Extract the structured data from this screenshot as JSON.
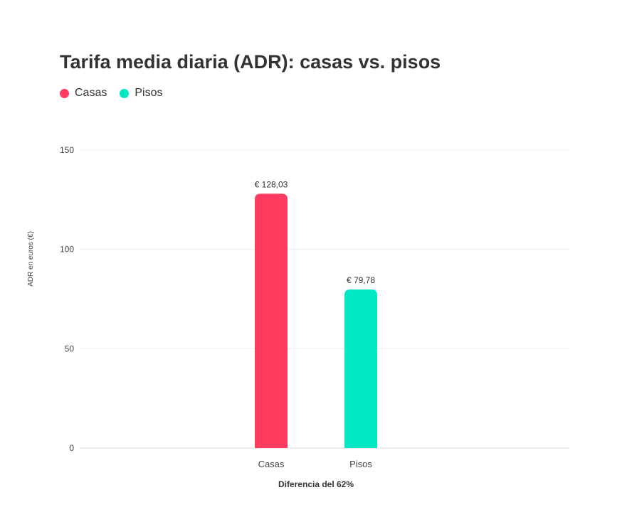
{
  "chart_data": {
    "type": "bar",
    "title": "Tarifa media diaria (ADR): casas vs. pisos",
    "xlabel": "Diferencia del 62%",
    "ylabel": "ADR en euros (€)",
    "categories": [
      "Casas",
      "Pisos"
    ],
    "values": [
      128.03,
      79.78
    ],
    "value_labels": [
      "€ 128,03",
      "€ 79,78"
    ],
    "colors": [
      "#ff3b5f",
      "#00e8c4"
    ],
    "ylim": [
      0,
      150
    ],
    "yticks": [
      0,
      50,
      100,
      150
    ],
    "grid": true,
    "legend_position": "top-left",
    "legend": [
      {
        "name": "Casas",
        "color": "#ff3b5f"
      },
      {
        "name": "Pisos",
        "color": "#00e8c4"
      }
    ]
  }
}
